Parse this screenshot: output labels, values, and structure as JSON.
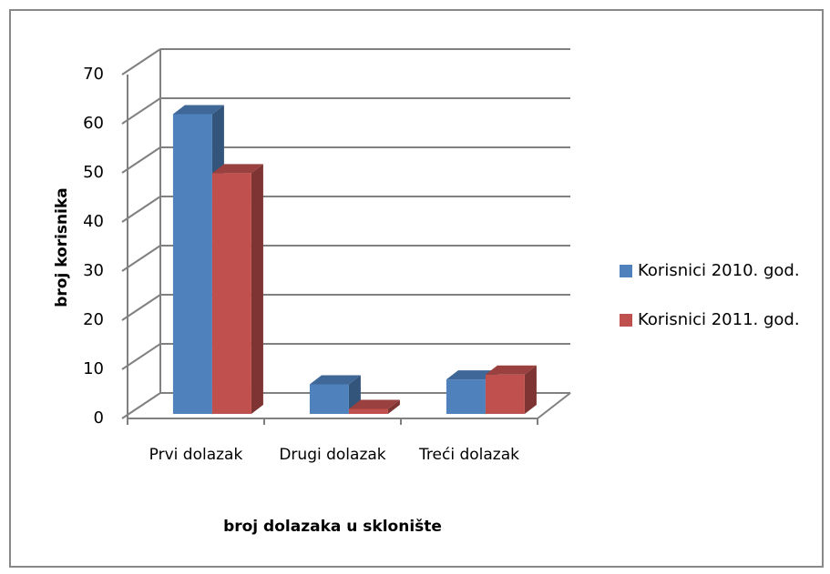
{
  "chart_data": {
    "type": "bar3d",
    "categories": [
      "Prvi dolazak",
      "Drugi dolazak",
      "Treći dolazak"
    ],
    "series": [
      {
        "name": "Korisnici 2010. god.",
        "color": "#4f81bd",
        "values": [
          61,
          6,
          7
        ]
      },
      {
        "name": "Korisnici 2011. god.",
        "color": "#c0504d",
        "values": [
          49,
          1,
          8
        ]
      }
    ],
    "ylim": [
      0,
      70
    ],
    "yticks": [
      0,
      10,
      20,
      30,
      40,
      50,
      60,
      70
    ],
    "y_label": "broj korisnika",
    "x_label": "broj dolazaka u sklonište",
    "grid": true,
    "legend": "right"
  }
}
